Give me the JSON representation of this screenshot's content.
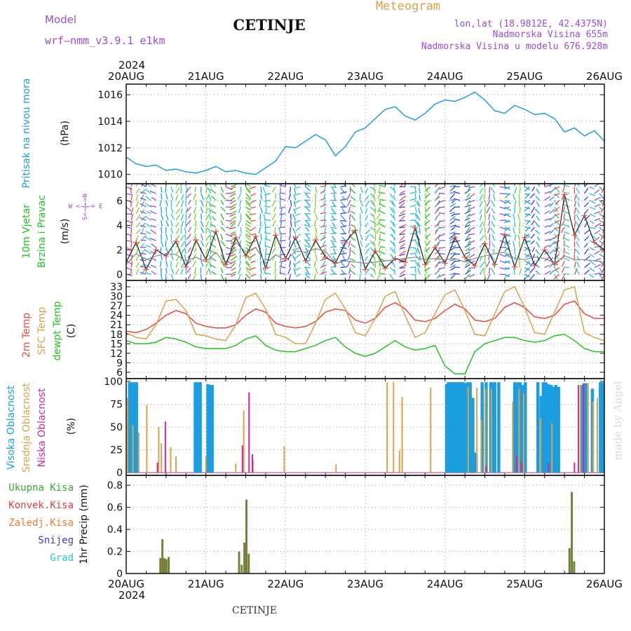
{
  "header": {
    "model_label": "Model",
    "model_name": "wrf—nmm_v3.9.1  e1km",
    "title": "CETINJE",
    "meteogram_label": "Meteogram",
    "lonlat": "lon,lat (18.9812E, 42.4375N)",
    "elevation": "Nadmorska Visina 655m",
    "model_elevation": "Nadmorska Visina u modelu 676.928m",
    "footer_title": "CETINJE",
    "watermark": "made by Angel"
  },
  "colors": {
    "pressure": "#1e9fe0",
    "temp2m": "#e84b3c",
    "sfc_temp": "#d9a24a",
    "dewpoint": "#22c422",
    "cloud_high": "#1a9ee0",
    "cloud_mid": "#d9a24a",
    "cloud_low": "#cc2c9a",
    "precip_total": "#3aa83a",
    "precip_conv": "#e83a3a",
    "precip_frz": "#f07a30",
    "snow": "#3a3ae8",
    "hail": "#2bc4c4",
    "model": "#9a4ae0",
    "meteogram": "#d9a24a",
    "wind_speed_line": "#222222",
    "wind_gust_line": "#888888",
    "wind_marker": "#e84b3c"
  },
  "time_axis": {
    "year": "2024",
    "ticks": [
      "20AUG",
      "21AUG",
      "22AUG",
      "23AUG",
      "24AUG",
      "25AUG",
      "26AUG"
    ]
  },
  "chart_data": [
    {
      "id": "pressure",
      "type": "line",
      "ylabel": "Pritisak na nivou mora",
      "unit": "(hPa)",
      "ylim": [
        1009.3,
        1016.8
      ],
      "yticks": [
        1010,
        1012,
        1014,
        1016
      ],
      "grid": true,
      "x_hours": [
        0,
        3,
        6,
        9,
        12,
        15,
        18,
        21,
        24,
        27,
        30,
        33,
        36,
        39,
        42,
        45,
        48,
        51,
        54,
        57,
        60,
        63,
        66,
        69,
        72,
        75,
        78,
        81,
        84,
        87,
        90,
        93,
        96,
        99,
        102,
        105,
        108,
        111,
        114,
        117,
        120,
        123,
        126,
        129,
        132,
        135,
        138,
        141,
        144
      ],
      "values": [
        1011.3,
        1010.8,
        1010.6,
        1010.7,
        1010.3,
        1010.4,
        1010.2,
        1010.1,
        1010.3,
        1010.6,
        1010.2,
        1010.3,
        1010.1,
        1010.0,
        1010.5,
        1011.0,
        1012.1,
        1012.0,
        1012.5,
        1013.0,
        1012.6,
        1011.4,
        1012.1,
        1013.2,
        1013.5,
        1014.2,
        1014.9,
        1015.1,
        1014.4,
        1014.1,
        1014.6,
        1015.3,
        1015.6,
        1015.5,
        1015.8,
        1016.2,
        1015.6,
        1014.8,
        1014.6,
        1015.2,
        1014.9,
        1014.5,
        1014.6,
        1014.2,
        1013.2,
        1013.5,
        1012.9,
        1013.3,
        1012.5
      ]
    },
    {
      "id": "wind",
      "type": "line",
      "ylabel": "10m Vjetar",
      "ylabel2": "Brzina i Pravac",
      "unit": "(m/s)",
      "legend_dir": "W <—|—> E",
      "legend_dir_v": "S<—|—>N",
      "ylim": [
        -0.5,
        7.4
      ],
      "yticks": [
        0,
        2,
        4,
        6
      ],
      "grid": true,
      "x_hours": [
        0,
        3,
        6,
        9,
        12,
        15,
        18,
        21,
        24,
        27,
        30,
        33,
        36,
        39,
        42,
        45,
        48,
        51,
        54,
        57,
        60,
        63,
        66,
        69,
        72,
        75,
        78,
        81,
        84,
        87,
        90,
        93,
        96,
        99,
        102,
        105,
        108,
        111,
        114,
        117,
        120,
        123,
        126,
        129,
        132,
        135,
        138,
        141,
        144
      ],
      "series": [
        {
          "values": [
            1.0,
            2.6,
            0.4,
            2.0,
            1.5,
            2.7,
            0.6,
            2.8,
            1.2,
            3.5,
            0.8,
            3.0,
            1.5,
            3.1,
            0.5,
            3.2,
            1.3,
            3.0,
            1.1,
            2.8,
            1.4,
            0.9,
            2.6,
            3.6,
            0.4,
            1.9,
            0.5,
            1.3,
            1.0,
            3.8,
            0.8,
            2.2,
            0.9,
            3.0,
            1.4,
            0.7,
            2.5,
            0.8,
            3.2,
            0.6,
            3.0,
            0.7,
            2.0,
            0.8,
            6.5,
            3.2,
            4.8,
            2.6,
            2.0
          ]
        },
        {
          "values": [
            0.8,
            1.7,
            1.2,
            1.5,
            1.7,
            1.6,
            1.1,
            1.4,
            1.0,
            1.8,
            0.7,
            2.6,
            1.8,
            2.2,
            0.9,
            1.6,
            1.1,
            1.9,
            1.8,
            2.1,
            1.9,
            0.9,
            1.1,
            1.0,
            0.9,
            1.0,
            1.1,
            1.2,
            1.3,
            1.4,
            1.2,
            1.3,
            1.2,
            1.3,
            1.0,
            1.3,
            1.5,
            1.7,
            1.8,
            1.3,
            1.2,
            1.4,
            1.3,
            0.9,
            1.5,
            1.2,
            1.2,
            1.1,
            1.0
          ]
        }
      ]
    },
    {
      "id": "temperature",
      "type": "line",
      "ylabel": "2m Temp",
      "ylabel2": "SFC Temp",
      "ylabel3": "dewpt Temp",
      "unit": "(C)",
      "ylim": [
        4,
        35
      ],
      "yticks": [
        6,
        9,
        12,
        15,
        18,
        21,
        24,
        27,
        30,
        33
      ],
      "grid": true,
      "x_hours": [
        0,
        3,
        6,
        9,
        12,
        15,
        18,
        21,
        24,
        27,
        30,
        33,
        36,
        39,
        42,
        45,
        48,
        51,
        54,
        57,
        60,
        63,
        66,
        69,
        72,
        75,
        78,
        81,
        84,
        87,
        90,
        93,
        96,
        99,
        102,
        105,
        108,
        111,
        114,
        117,
        120,
        123,
        126,
        129,
        132,
        135,
        138,
        141,
        144
      ],
      "series": [
        {
          "values": [
            19.0,
            18.5,
            19.5,
            21.5,
            24.0,
            25.5,
            24.5,
            21.5,
            20.5,
            20.0,
            20.0,
            21.0,
            24.0,
            26.0,
            25.0,
            21.5,
            20.5,
            20.0,
            20.5,
            22.0,
            25.0,
            26.0,
            25.5,
            22.5,
            21.5,
            23.0,
            26.5,
            28.0,
            26.0,
            22.5,
            22.0,
            23.0,
            25.5,
            27.5,
            26.0,
            22.5,
            22.0,
            23.0,
            26.5,
            28.0,
            26.5,
            23.5,
            23.0,
            24.0,
            27.5,
            28.5,
            24.5,
            23.0,
            23.0
          ]
        },
        {
          "values": [
            18.5,
            17.0,
            16.5,
            21.0,
            28.5,
            29.0,
            25.5,
            18.0,
            17.5,
            16.5,
            16.0,
            21.0,
            29.5,
            31.0,
            26.0,
            18.0,
            17.0,
            15.0,
            15.0,
            21.5,
            29.0,
            31.0,
            26.0,
            18.5,
            17.5,
            23.0,
            30.0,
            31.5,
            24.0,
            17.0,
            18.5,
            24.5,
            30.5,
            32.0,
            25.5,
            18.0,
            17.5,
            24.5,
            31.5,
            33.0,
            26.5,
            18.5,
            18.0,
            25.0,
            32.0,
            33.0,
            18.5,
            17.0,
            16.0
          ]
        },
        {
          "values": [
            16.0,
            15.0,
            15.0,
            15.5,
            17.0,
            16.5,
            15.5,
            14.0,
            13.5,
            13.5,
            13.5,
            14.5,
            16.5,
            17.5,
            14.5,
            13.0,
            12.5,
            12.5,
            13.5,
            14.5,
            16.0,
            17.0,
            14.0,
            12.0,
            11.0,
            12.0,
            14.0,
            16.0,
            14.0,
            13.0,
            13.5,
            14.5,
            8.0,
            5.5,
            5.5,
            12.5,
            15.0,
            16.0,
            17.0,
            17.0,
            16.0,
            15.5,
            16.0,
            17.5,
            18.0,
            16.0,
            13.5,
            12.5,
            12.5
          ]
        }
      ]
    },
    {
      "id": "clouds",
      "type": "bar",
      "ylabel": "Visoka Oblacnost",
      "ylabel2": "Srednja Oblacnost",
      "ylabel3": "Niska Oblacnost",
      "unit": "(%)",
      "ylim": [
        -3,
        103
      ],
      "yticks": [
        0,
        25,
        50,
        75,
        100
      ],
      "grid": true,
      "series": [
        {
          "bars": [
            [
              1,
              99
            ],
            [
              1.5,
              99
            ],
            [
              1.9,
              99
            ],
            [
              2.6,
              99
            ],
            [
              3.1,
              99
            ],
            [
              20.8,
              99
            ],
            [
              21.3,
              99
            ],
            [
              21.8,
              99
            ],
            [
              22.3,
              99
            ],
            [
              24.6,
              97
            ],
            [
              25.4,
              96
            ],
            [
              25.9,
              96
            ],
            [
              96.5,
              97
            ],
            [
              97.0,
              99
            ],
            [
              97.5,
              99
            ],
            [
              98.0,
              99
            ],
            [
              98.5,
              99
            ],
            [
              99.0,
              99
            ],
            [
              99.5,
              99
            ],
            [
              100.0,
              99
            ],
            [
              100.5,
              99
            ],
            [
              101.0,
              99
            ],
            [
              101.6,
              99
            ],
            [
              102.2,
              98
            ],
            [
              102.8,
              99
            ],
            [
              103.6,
              99
            ],
            [
              104.4,
              82
            ],
            [
              104.9,
              22
            ],
            [
              105.4,
              20
            ],
            [
              107.2,
              99
            ],
            [
              108.4,
              99
            ],
            [
              109.8,
              99
            ],
            [
              110.4,
              99
            ],
            [
              111.0,
              99
            ],
            [
              112.2,
              99
            ],
            [
              117.0,
              99
            ],
            [
              117.8,
              99
            ],
            [
              118.6,
              99
            ],
            [
              119.4,
              96
            ],
            [
              120.2,
              99
            ],
            [
              124.0,
              99
            ],
            [
              125.0,
              84
            ],
            [
              125.6,
              99
            ],
            [
              126.4,
              99
            ],
            [
              127.2,
              97
            ],
            [
              128.0,
              96
            ],
            [
              128.6,
              94
            ],
            [
              129.4,
              96
            ],
            [
              130.2,
              94
            ],
            [
              137.4,
              96
            ],
            [
              137.9,
              98
            ],
            [
              138.4,
              98
            ],
            [
              140.4,
              92
            ],
            [
              142.8,
              99
            ],
            [
              143.5,
              99
            ]
          ]
        },
        {
          "bars": [
            [
              0.4,
              82
            ],
            [
              2.0,
              52
            ],
            [
              3.8,
              44
            ],
            [
              6.2,
              74
            ],
            [
              9.8,
              50
            ],
            [
              10.6,
              32
            ],
            [
              13.4,
              28
            ],
            [
              15.0,
              18
            ],
            [
              24.0,
              18
            ],
            [
              33.0,
              10
            ],
            [
              35.4,
              68
            ],
            [
              38.2,
              14
            ],
            [
              47.6,
              29
            ],
            [
              63.2,
              9
            ],
            [
              78.6,
              99
            ],
            [
              80.5,
              99
            ],
            [
              82.3,
              24
            ],
            [
              83.1,
              83
            ],
            [
              91.7,
              93
            ],
            [
              103.0,
              94
            ],
            [
              105.6,
              93
            ],
            [
              106.9,
              58
            ],
            [
              108.2,
              92
            ],
            [
              110.0,
              92
            ],
            [
              116.4,
              78
            ],
            [
              118.3,
              92
            ],
            [
              119.7,
              87
            ],
            [
              124.8,
              60
            ],
            [
              128.2,
              54
            ],
            [
              136.8,
              96
            ],
            [
              139.1,
              98
            ],
            [
              140.6,
              78
            ],
            [
              141.9,
              82
            ]
          ]
        },
        {
          "bars": [
            [
              9.4,
              11
            ],
            [
              11.8,
              56
            ],
            [
              35.0,
              30
            ],
            [
              37.0,
              88
            ],
            [
              38.0,
              20
            ],
            [
              108.4,
              7
            ],
            [
              117.6,
              19
            ],
            [
              119.0,
              12
            ],
            [
              127.2,
              11
            ],
            [
              135.0,
              11
            ],
            [
              136.2,
              96
            ],
            [
              137.7,
              97
            ]
          ]
        }
      ]
    },
    {
      "id": "precip",
      "type": "bar",
      "ylabel": "1hr Precip (mm)",
      "legend": [
        "Ukupna Kisa",
        "Konvek.Kisa",
        "Zaledj.Kisa",
        "Snijeg",
        "Grad"
      ],
      "ylim": [
        0,
        0.89
      ],
      "yticks": [
        0,
        0.2,
        0.4,
        0.6,
        0.8
      ],
      "grid": true,
      "series": [
        {
          "bars": [
            [
              10.3,
              0.14
            ],
            [
              10.9,
              0.31
            ],
            [
              11.5,
              0.14
            ],
            [
              12.1,
              0.13
            ],
            [
              12.8,
              0.15
            ],
            [
              34.0,
              0.2
            ],
            [
              34.8,
              0.08
            ],
            [
              35.6,
              0.28
            ],
            [
              36.2,
              0.67
            ],
            [
              36.9,
              0.18
            ],
            [
              133.5,
              0.23
            ],
            [
              134.2,
              0.74
            ],
            [
              134.9,
              0.11
            ]
          ]
        }
      ]
    }
  ]
}
